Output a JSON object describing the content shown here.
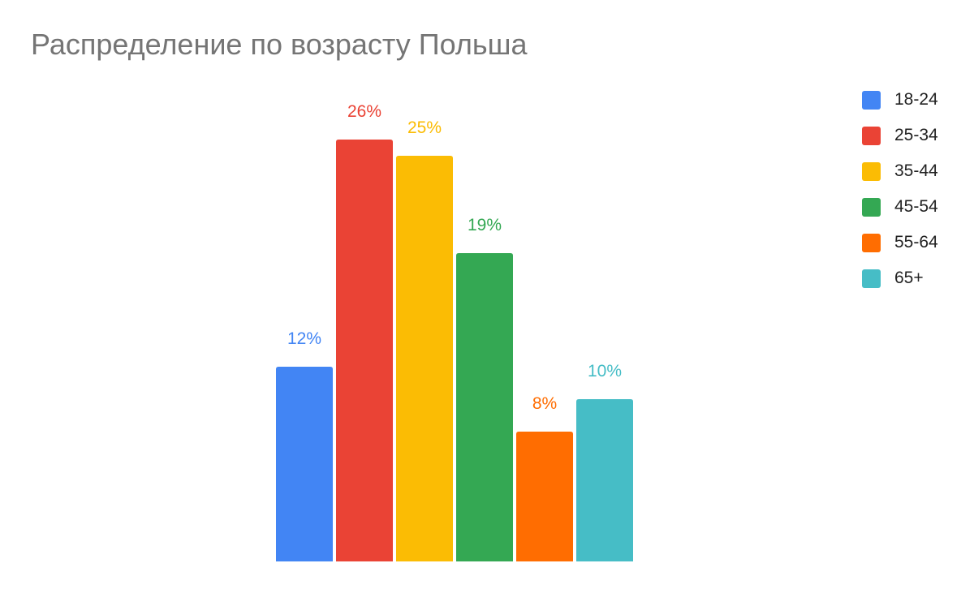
{
  "chart_data": {
    "type": "bar",
    "title": "Распределение по возрасту Польша",
    "xlabel": "",
    "ylabel": "",
    "ylim": [
      0,
      30
    ],
    "grid": false,
    "legend_position": "top-right",
    "categories": [
      "18-24",
      "25-34",
      "35-44",
      "45-54",
      "55-64",
      "65+"
    ],
    "values": [
      12,
      26,
      25,
      19,
      8,
      10
    ],
    "data_labels": [
      "12%",
      "26%",
      "25%",
      "19%",
      "8%",
      "10%"
    ],
    "colors": [
      "#4285F4",
      "#EA4335",
      "#FBBC04",
      "#34A853",
      "#FF6D01",
      "#46BDC6"
    ]
  }
}
